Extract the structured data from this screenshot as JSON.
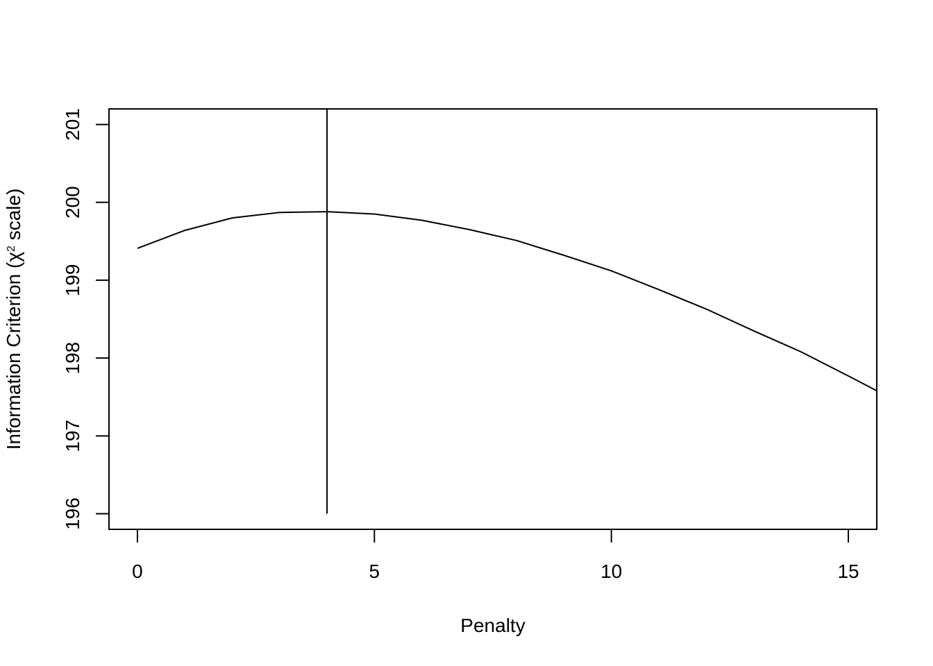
{
  "chart_data": {
    "type": "line",
    "title": "",
    "xlabel": "Penalty",
    "ylabel_prefix": "Information Criterion (",
    "ylabel_symbol": "χ",
    "ylabel_superscript": "2",
    "ylabel_suffix": " scale)",
    "xlim": [
      -0.6,
      15.6
    ],
    "ylim": [
      195.8,
      201.2
    ],
    "x_ticks": [
      "0",
      "5",
      "10",
      "15"
    ],
    "y_ticks": [
      "196",
      "197",
      "198",
      "199",
      "200",
      "201"
    ],
    "grid": false,
    "legend": "none",
    "line_color": "#000000",
    "series": [
      {
        "x": [
          0,
          1,
          2,
          3,
          4,
          5,
          6,
          7,
          8,
          9,
          10,
          11,
          12,
          13,
          14,
          15,
          15.6
        ],
        "y": [
          199.41,
          199.64,
          199.8,
          199.87,
          199.88,
          199.85,
          199.77,
          199.65,
          199.51,
          199.32,
          199.12,
          198.88,
          198.63,
          198.35,
          198.08,
          197.77,
          197.58
        ]
      }
    ],
    "vline": {
      "x": 4,
      "y_from": 196,
      "y_to": 201.2
    }
  }
}
